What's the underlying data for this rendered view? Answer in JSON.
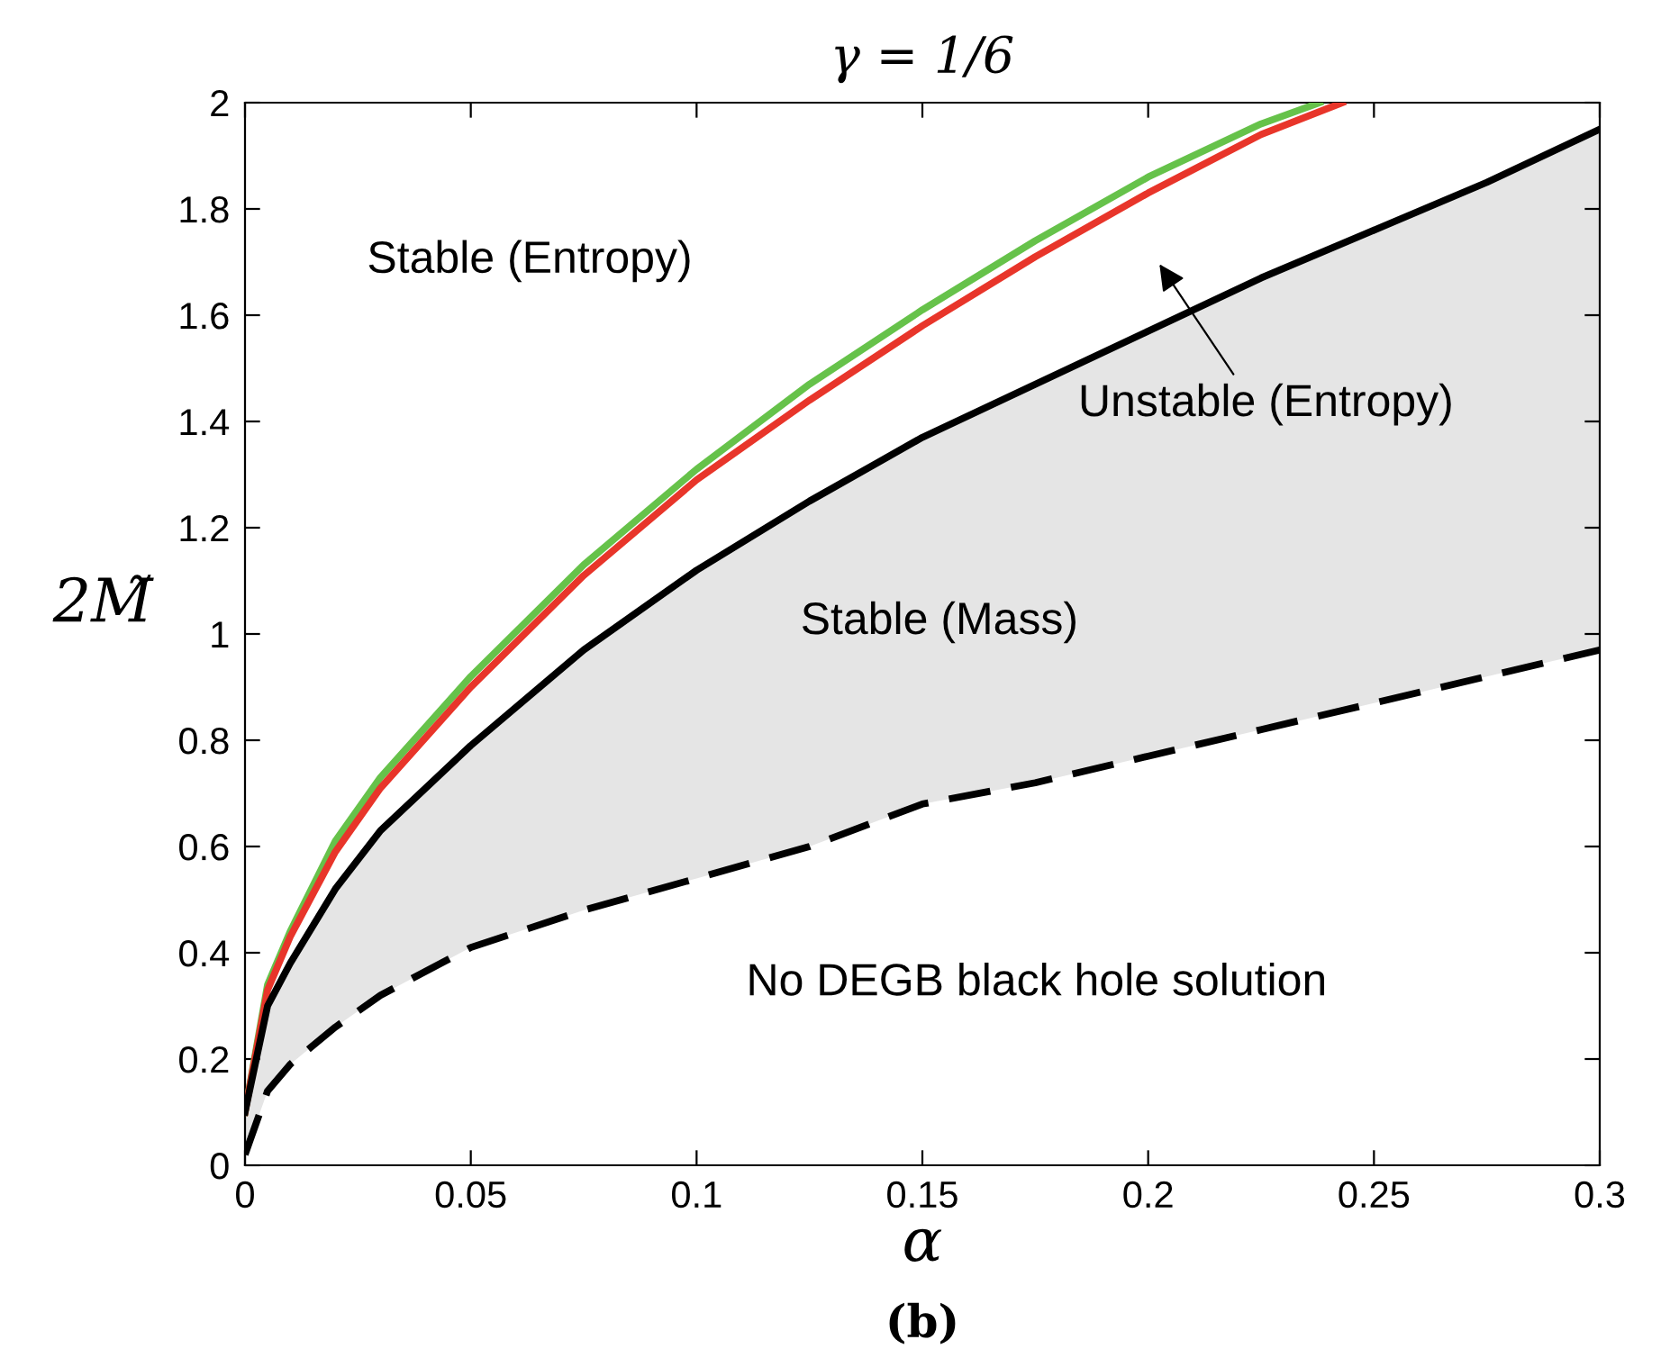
{
  "chart_data": {
    "type": "line",
    "title": "γ = 1/6",
    "xlabel": "α",
    "ylabel": "2M̃",
    "xlim": [
      0,
      0.3
    ],
    "ylim": [
      0,
      2
    ],
    "xticks": [
      0,
      0.05,
      0.1,
      0.15,
      0.2,
      0.25,
      0.3
    ],
    "yticks": [
      0,
      0.2,
      0.4,
      0.6,
      0.8,
      1,
      1.2,
      1.4,
      1.6,
      1.8,
      2
    ],
    "grid": false,
    "legend": false,
    "marker": "none",
    "series": [
      {
        "color": "#66c24a",
        "line_style": "solid",
        "x": [
          0,
          0.005,
          0.01,
          0.02,
          0.03,
          0.05,
          0.075,
          0.1,
          0.125,
          0.15,
          0.175,
          0.2,
          0.225,
          0.238
        ],
        "values": [
          0.1,
          0.34,
          0.44,
          0.61,
          0.73,
          0.92,
          1.13,
          1.31,
          1.47,
          1.61,
          1.74,
          1.86,
          1.96,
          2.0
        ]
      },
      {
        "color": "#e8352a",
        "line_style": "solid",
        "x": [
          0,
          0.005,
          0.01,
          0.02,
          0.03,
          0.05,
          0.075,
          0.1,
          0.125,
          0.15,
          0.175,
          0.2,
          0.225,
          0.243
        ],
        "values": [
          0.1,
          0.33,
          0.43,
          0.59,
          0.71,
          0.9,
          1.11,
          1.29,
          1.44,
          1.58,
          1.71,
          1.83,
          1.94,
          2.0
        ]
      },
      {
        "color": "#000000",
        "line_style": "solid",
        "x": [
          0,
          0.005,
          0.01,
          0.02,
          0.03,
          0.05,
          0.075,
          0.1,
          0.125,
          0.15,
          0.175,
          0.2,
          0.225,
          0.25,
          0.275,
          0.3
        ],
        "values": [
          0.1,
          0.3,
          0.38,
          0.52,
          0.63,
          0.79,
          0.97,
          1.12,
          1.25,
          1.37,
          1.47,
          1.57,
          1.67,
          1.76,
          1.85,
          1.95
        ],
        "lower": [
          0.02,
          0.14,
          0.19,
          0.26,
          0.32,
          0.41,
          0.48,
          0.54,
          0.6,
          0.68,
          0.72,
          0.77,
          0.82,
          0.87,
          0.92,
          0.97
        ],
        "upper": [
          0.1,
          0.3,
          0.38,
          0.52,
          0.63,
          0.79,
          0.97,
          1.12,
          1.25,
          1.37,
          1.47,
          1.57,
          1.67,
          1.76,
          1.85,
          1.95
        ]
      },
      {
        "color": "#000000",
        "line_style": "dashed",
        "x": [
          0,
          0.005,
          0.01,
          0.02,
          0.03,
          0.05,
          0.075,
          0.1,
          0.125,
          0.15,
          0.175,
          0.2,
          0.225,
          0.25,
          0.275,
          0.3
        ],
        "values": [
          0.02,
          0.14,
          0.19,
          0.26,
          0.32,
          0.41,
          0.48,
          0.54,
          0.6,
          0.68,
          0.72,
          0.77,
          0.82,
          0.87,
          0.92,
          0.97
        ]
      }
    ],
    "annotations": [
      "Stable (Entropy)",
      "Unstable (Entropy)",
      "Stable (Mass)",
      "No DEGB black hole solution",
      "(b)"
    ]
  }
}
